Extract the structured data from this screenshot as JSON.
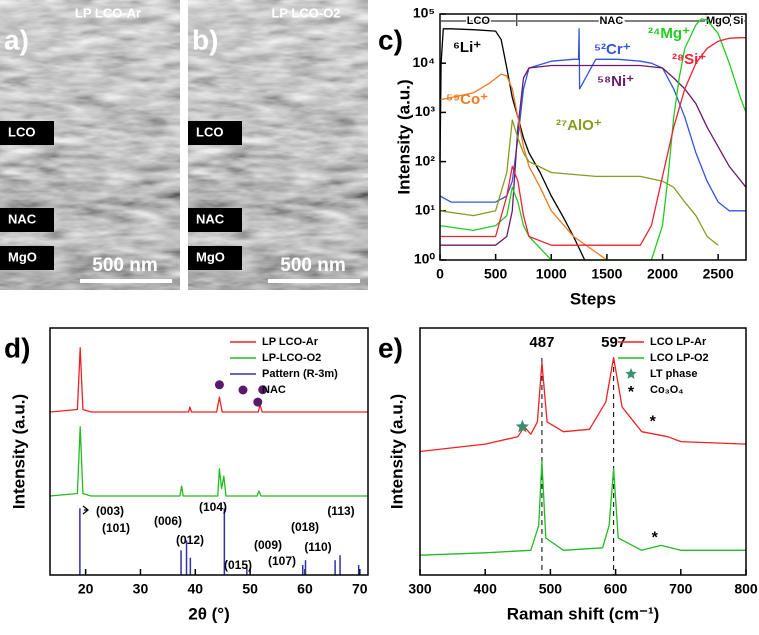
{
  "panels": [
    {
      "label": "a)",
      "title": "LP LCO-Ar",
      "layers": [
        "LCO",
        "NAC",
        "MgO"
      ],
      "scale_bar": "500 nm"
    },
    {
      "label": "b)",
      "title": "LP LCO-O2",
      "layers": [
        "LCO",
        "NAC",
        "MgO"
      ],
      "scale_bar": "500 nm"
    }
  ],
  "chart_data": [
    {
      "panel_label": "c)",
      "type": "line",
      "xlabel": "Steps",
      "ylabel": "Intensity (a.u.)",
      "log_y": true,
      "xlim": [
        0,
        2750
      ],
      "xticks": [
        0,
        500,
        1000,
        1500,
        2000,
        2500
      ],
      "ylim": [
        1,
        100000
      ],
      "yticks": [
        {
          "value": 1,
          "label": "10⁰"
        },
        {
          "value": 10,
          "label": "10¹"
        },
        {
          "value": 100,
          "label": "10²"
        },
        {
          "value": 1000,
          "label": "10³"
        },
        {
          "value": 10000,
          "label": "10⁴"
        },
        {
          "value": 100000,
          "label": "10⁵"
        }
      ],
      "regions": [
        {
          "name": "LCO",
          "range": [
            0,
            690
          ]
        },
        {
          "name": "NAC",
          "range": [
            690,
            2390
          ]
        },
        {
          "name": "MgO",
          "range": [
            2390,
            2610
          ]
        },
        {
          "name": "Si",
          "range": [
            2610,
            2750
          ]
        }
      ],
      "series": [
        {
          "name": "⁶Li⁺",
          "color": "#000000",
          "x": [
            0,
            10,
            30,
            100,
            300,
            500,
            550,
            600,
            650,
            700,
            750,
            800,
            900,
            1000,
            1100,
            1200,
            1300
          ],
          "values": [
            100,
            10000,
            50000,
            50000,
            48000,
            45000,
            30000,
            8000,
            2000,
            800,
            300,
            150,
            60,
            20,
            8,
            3,
            1
          ]
        },
        {
          "name": "⁵²Cr⁺",
          "color": "#3355dd",
          "x": [
            0,
            100,
            300,
            500,
            600,
            650,
            700,
            750,
            800,
            1000,
            1200,
            1245,
            1250,
            1255,
            1400,
            1600,
            1800,
            1900,
            2000,
            2100,
            2200,
            2300,
            2400,
            2500,
            2600,
            2750
          ],
          "values": [
            20,
            15,
            15,
            15,
            20,
            40,
            300,
            3000,
            8000,
            11000,
            12000,
            12000,
            50000,
            3000,
            12000,
            12000,
            11000,
            10000,
            8000,
            3000,
            800,
            150,
            40,
            15,
            10,
            10
          ]
        },
        {
          "name": "⁵⁸Ni⁺",
          "color": "#6a1b6a",
          "x": [
            0,
            300,
            500,
            600,
            650,
            700,
            750,
            800,
            1000,
            1500,
            1800,
            2000,
            2100,
            2200,
            2300,
            2400,
            2500,
            2600,
            2750
          ],
          "values": [
            2,
            2,
            2,
            3,
            10,
            500,
            5000,
            8000,
            9000,
            9000,
            9000,
            8000,
            5000,
            3000,
            1500,
            500,
            200,
            80,
            30
          ]
        },
        {
          "name": "⁵⁹Co⁺",
          "color": "#f07a20",
          "x": [
            0,
            100,
            300,
            450,
            550,
            600,
            650,
            700,
            750,
            800,
            900,
            1000,
            1200,
            1500
          ],
          "values": [
            1800,
            2000,
            2500,
            4000,
            6000,
            5500,
            3000,
            800,
            200,
            80,
            30,
            10,
            3,
            1
          ]
        },
        {
          "name": "²⁷AlO⁺",
          "color": "#8a9a20",
          "x": [
            0,
            300,
            500,
            600,
            650,
            700,
            750,
            800,
            1000,
            1400,
            1800,
            1900,
            2000,
            2100,
            2200,
            2300,
            2400,
            2500
          ],
          "values": [
            10,
            8,
            10,
            60,
            700,
            300,
            150,
            100,
            60,
            50,
            50,
            45,
            40,
            30,
            15,
            8,
            3,
            2
          ]
        },
        {
          "name": "²⁴Mg⁺",
          "color": "#22cc22",
          "x": [
            0,
            300,
            500,
            600,
            650,
            700,
            750,
            800,
            1000,
            1500,
            1900,
            2000,
            2050,
            2100,
            2150,
            2200,
            2300,
            2350,
            2400,
            2500,
            2600,
            2700,
            2750
          ],
          "values": [
            5,
            4,
            5,
            8,
            30,
            15,
            5,
            3,
            1,
            1,
            1,
            5,
            50,
            800,
            5000,
            20000,
            60000,
            80000,
            75000,
            40000,
            10000,
            2000,
            1000
          ]
        },
        {
          "name": "²⁸Si⁺",
          "color": "#ee2233",
          "x": [
            0,
            300,
            500,
            600,
            650,
            700,
            750,
            800,
            1000,
            1500,
            1800,
            1900,
            2000,
            2100,
            2200,
            2300,
            2400,
            2500,
            2600,
            2700,
            2750
          ],
          "values": [
            3,
            3,
            3,
            20,
            80,
            40,
            8,
            3,
            2,
            2,
            2,
            5,
            50,
            500,
            3000,
            10000,
            20000,
            28000,
            32000,
            33000,
            33000
          ]
        }
      ]
    },
    {
      "panel_label": "d)",
      "type": "line",
      "xlabel": "2θ (°)",
      "ylabel": "Intensity (a.u.)",
      "legend": "upper right",
      "xlim": [
        13.5,
        71.5
      ],
      "xticks": [
        20,
        30,
        40,
        50,
        60,
        70
      ],
      "ylim": [
        0,
        100
      ],
      "hkl_labels": [
        "(003)",
        "(101)",
        "(006)",
        "(012)",
        "(104)",
        "(015)",
        "(009)",
        "(107)",
        "(018)",
        "(110)",
        "(113)"
      ],
      "series": [
        {
          "name": "LP LCO-Ar",
          "color": "#ee2222",
          "mark": "line",
          "x": [
            13.5,
            18.5,
            19,
            19.5,
            21,
            38.8,
            39,
            39.3,
            43.9,
            44.4,
            44.9,
            51.5,
            51.8,
            52.2,
            71.5
          ],
          "values": [
            66,
            67,
            92,
            67,
            66,
            66,
            68,
            66,
            66,
            72,
            66,
            66,
            69,
            66,
            66
          ]
        },
        {
          "name": "LP-LCO-O2",
          "color": "#22bb22",
          "mark": "line",
          "x": [
            13.5,
            18.5,
            19,
            19.5,
            21,
            37.2,
            37.5,
            37.8,
            44.1,
            44.4,
            44.8,
            45.2,
            45.6,
            51.3,
            51.6,
            52,
            71.5
          ],
          "values": [
            32,
            33,
            60,
            33,
            32,
            32,
            36,
            32,
            32,
            43,
            35,
            40,
            32,
            32,
            34,
            32,
            32
          ]
        },
        {
          "name": "Pattern (R-3m)",
          "color": "#3030aa",
          "mark": "stick",
          "x": [
            18.95,
            37.4,
            38.4,
            39.1,
            45.3,
            49.4,
            59.6,
            60.1,
            65.5,
            66.4,
            69.8
          ],
          "values": [
            27,
            10,
            14,
            7,
            27,
            3,
            4,
            6,
            6,
            8,
            4
          ]
        },
        {
          "name": "NAC",
          "color": "#5a1a6a",
          "mark": "dot",
          "x": [
            44.4,
            52.3,
            51.4
          ],
          "values": [
            77,
            75,
            70
          ]
        }
      ]
    },
    {
      "panel_label": "e)",
      "type": "line",
      "xlabel": "Raman shift (cm⁻¹)",
      "ylabel": "Intensity (a.u.)",
      "legend": "upper right",
      "xlim": [
        300,
        800
      ],
      "xticks": [
        300,
        400,
        500,
        600,
        700,
        800
      ],
      "ylim": [
        0,
        100
      ],
      "peak_labels": [
        487,
        597
      ],
      "series": [
        {
          "name": "LCO LP-Ar",
          "color": "#ee2222",
          "mark": "line",
          "x": [
            300,
            400,
            450,
            460,
            470,
            480,
            487,
            495,
            520,
            560,
            585,
            597,
            610,
            640,
            680,
            700,
            800
          ],
          "values": [
            50,
            53,
            56,
            60,
            57,
            62,
            86,
            62,
            58,
            59,
            70,
            88,
            68,
            58,
            56,
            54,
            53
          ]
        },
        {
          "name": "LCO LP-O2",
          "color": "#22bb22",
          "mark": "line",
          "x": [
            300,
            400,
            470,
            482,
            487,
            493,
            520,
            580,
            590,
            597,
            604,
            640,
            670,
            700,
            800
          ],
          "values": [
            8,
            9,
            10,
            20,
            46,
            15,
            10,
            11,
            20,
            43,
            15,
            10,
            12,
            10,
            10
          ]
        },
        {
          "name": "LT phase",
          "color": "#3a8f6f",
          "mark": "star",
          "x": [
            457
          ],
          "values": [
            60
          ]
        },
        {
          "name": "Co₃O₄",
          "color": "#000000",
          "mark": "symbol",
          "symbol": "*",
          "x": [
            657,
            660
          ],
          "values": [
            63,
            16
          ]
        }
      ]
    }
  ]
}
